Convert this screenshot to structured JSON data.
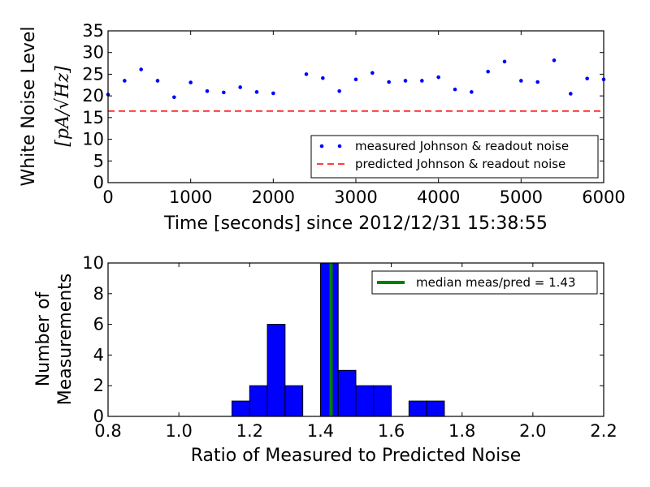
{
  "chart_data": [
    {
      "type": "scatter",
      "ylabel_line1": "White Noise Level",
      "ylabel_line2": "[pA/√Hz]",
      "xlabel": "Time [seconds] since 2012/12/31 15:38:55",
      "xlim": [
        0,
        6000
      ],
      "ylim": [
        0,
        35
      ],
      "xticks": [
        0,
        1000,
        2000,
        3000,
        4000,
        5000,
        6000
      ],
      "yticks": [
        0,
        5,
        10,
        15,
        20,
        25,
        30,
        35
      ],
      "legend_position": "lower-right",
      "series": [
        {
          "name": "measured Johnson & readout noise",
          "color": "#0000ff",
          "x": [
            0,
            200,
            400,
            600,
            800,
            1000,
            1200,
            1400,
            1600,
            1800,
            2000,
            2400,
            2600,
            2800,
            3000,
            3200,
            3400,
            3600,
            3800,
            4000,
            4200,
            4400,
            4600,
            4800,
            5000,
            5200,
            5400,
            5600,
            5800,
            6000
          ],
          "y": [
            20.3,
            23.5,
            26.1,
            23.5,
            19.7,
            23.1,
            21.1,
            20.8,
            22.0,
            20.9,
            20.6,
            25.0,
            24.1,
            21.1,
            23.8,
            25.3,
            23.2,
            23.5,
            23.5,
            24.3,
            21.5,
            20.9,
            25.6,
            27.9,
            23.5,
            23.2,
            28.2,
            20.5,
            24.0,
            23.8
          ]
        },
        {
          "name": "predicted Johnson & readout noise",
          "color": "#ff0000",
          "y_const": 16.5
        }
      ]
    },
    {
      "type": "bar",
      "ylabel_line1": "Number of",
      "ylabel_line2": "Measurements",
      "xlabel": "Ratio of Measured to Predicted Noise",
      "xlim": [
        0.8,
        2.2
      ],
      "ylim": [
        0,
        10
      ],
      "xticks": [
        "0.8",
        "1.0",
        "1.2",
        "1.4",
        "1.6",
        "1.8",
        "2.0",
        "2.2"
      ],
      "yticks": [
        0,
        2,
        4,
        6,
        8,
        10
      ],
      "bin_width": 0.05,
      "bins": [
        {
          "start": 1.15,
          "count": 1
        },
        {
          "start": 1.2,
          "count": 2
        },
        {
          "start": 1.25,
          "count": 6
        },
        {
          "start": 1.3,
          "count": 2
        },
        {
          "start": 1.4,
          "count": 10
        },
        {
          "start": 1.45,
          "count": 3
        },
        {
          "start": 1.5,
          "count": 2
        },
        {
          "start": 1.55,
          "count": 2
        },
        {
          "start": 1.65,
          "count": 1
        },
        {
          "start": 1.7,
          "count": 1
        }
      ],
      "bar_color": "#0000ff",
      "median": 1.43,
      "median_color": "#008000",
      "legend_label": "median meas/pred = 1.43",
      "legend_position": "top-right"
    }
  ]
}
